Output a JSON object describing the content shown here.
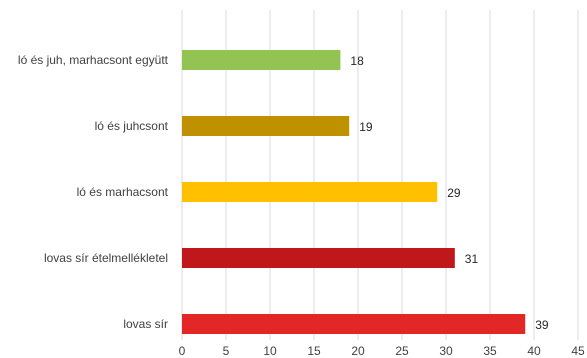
{
  "chart_data": {
    "type": "bar",
    "orientation": "horizontal",
    "title": "",
    "xlabel": "",
    "ylabel": "",
    "categories": [
      "ló és juh, marhacsont együtt",
      "ló és juhcsont",
      "ló és marhacsont",
      "lovas sír ételmellékletel",
      "lovas sír"
    ],
    "values": [
      18,
      19,
      29,
      31,
      39
    ],
    "colors": [
      "#92c353",
      "#bf9000",
      "#ffc000",
      "#c0171b",
      "#e32727"
    ],
    "xlim": [
      0,
      45
    ],
    "xticks": [
      "0",
      "5",
      "10",
      "15",
      "20",
      "25",
      "30",
      "35",
      "40",
      "45"
    ],
    "grid": "vertical",
    "data_labels": [
      "18",
      "19",
      "29",
      "31",
      "39"
    ]
  }
}
